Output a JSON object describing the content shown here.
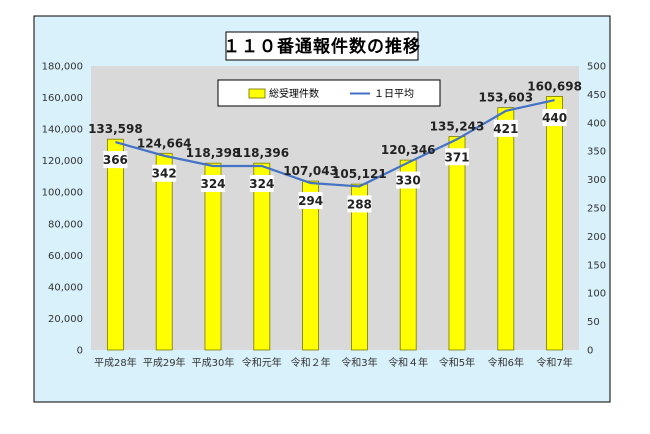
{
  "chart_data": {
    "type": "bar",
    "title": "１１０番通報件数の推移",
    "categories": [
      "平成28年",
      "平成29年",
      "平成30年",
      "令和元年",
      "令和２年",
      "令和3年",
      "令和４年",
      "令和5年",
      "令和6年",
      "令和7年"
    ],
    "series": [
      {
        "name": "総受理件数",
        "type": "bar",
        "axis": "left",
        "color": "#ffff00",
        "values": [
          133598,
          124664,
          118398,
          118396,
          107043,
          105121,
          120346,
          135243,
          153603,
          160698
        ],
        "labels": [
          "133,598",
          "124,664",
          "118,398",
          "118,396",
          "107,043",
          "105,121",
          "120,346",
          "135,243",
          "153,603",
          "160,698"
        ]
      },
      {
        "name": "１日平均",
        "type": "line",
        "axis": "right",
        "color": "#4472c4",
        "values": [
          366,
          342,
          324,
          324,
          294,
          288,
          330,
          371,
          421,
          440
        ],
        "labels": [
          "366",
          "342",
          "324",
          "324",
          "294",
          "288",
          "330",
          "371",
          "421",
          "440"
        ]
      }
    ],
    "y_left": {
      "range": [
        0,
        180000
      ],
      "ticks": [
        0,
        20000,
        40000,
        60000,
        80000,
        100000,
        120000,
        140000,
        160000,
        180000
      ],
      "tick_labels": [
        "0",
        "20,000",
        "40,000",
        "60,000",
        "80,000",
        "100,000",
        "120,000",
        "140,000",
        "160,000",
        "180,000"
      ]
    },
    "y_right": {
      "range": [
        0,
        500
      ],
      "ticks": [
        0,
        50,
        100,
        150,
        200,
        250,
        300,
        350,
        400,
        450,
        500
      ],
      "tick_labels": [
        "0",
        "50",
        "100",
        "150",
        "200",
        "250",
        "300",
        "350",
        "400",
        "450",
        "500"
      ]
    },
    "grid": false,
    "legend": "top-center",
    "colors": {
      "page_background": "#d9f1fb",
      "plot_background": "#d9d9d9"
    }
  }
}
